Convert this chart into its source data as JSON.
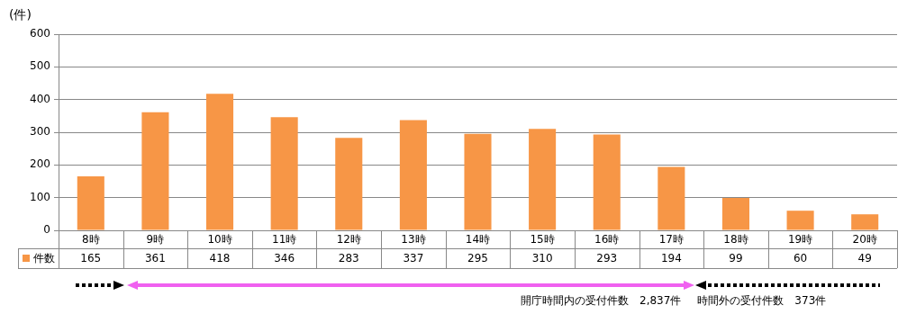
{
  "chart_data": {
    "type": "bar",
    "ylabel": "(件)",
    "categories": [
      "8時",
      "9時",
      "10時",
      "11時",
      "12時",
      "13時",
      "14時",
      "15時",
      "16時",
      "17時",
      "18時",
      "19時",
      "20時"
    ],
    "series": [
      {
        "name": "件数",
        "color": "#f79646",
        "values": [
          165,
          361,
          418,
          346,
          283,
          337,
          295,
          310,
          293,
          194,
          99,
          60,
          49
        ]
      }
    ],
    "ylim": [
      0,
      600
    ],
    "yticks": [
      0,
      100,
      200,
      300,
      400,
      500,
      600
    ],
    "grid": "y",
    "legend": "bottom left",
    "data_labels": true,
    "annotations": [
      "開庁時間内の受付件数　2,837件",
      "時間外の受付件数　373件"
    ]
  }
}
